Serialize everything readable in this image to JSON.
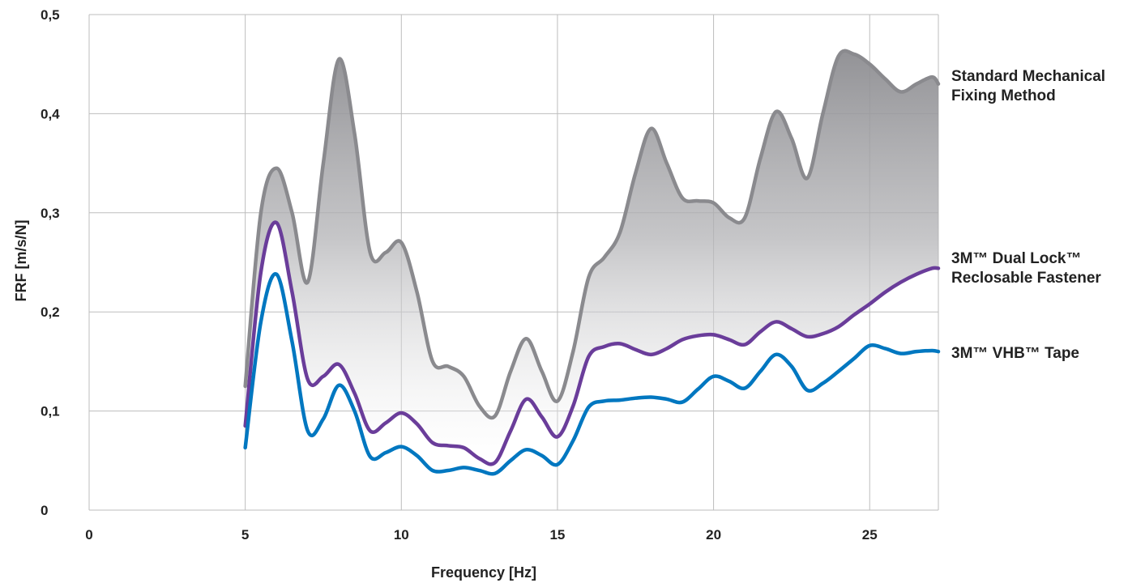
{
  "chart_data": {
    "type": "line",
    "xlabel": "Frequency [Hz]",
    "ylabel": "FRF [m/s/N]",
    "xlim": [
      0,
      27.2
    ],
    "ylim": [
      0,
      0.5
    ],
    "x_ticks": [
      0,
      5,
      10,
      15,
      20,
      25
    ],
    "x_tick_labels": [
      "0",
      "5",
      "10",
      "15",
      "20",
      "25"
    ],
    "y_ticks": [
      0,
      0.1,
      0.2,
      0.3,
      0.4,
      0.5
    ],
    "y_tick_labels": [
      "0",
      "0,1",
      "0,2",
      "0,3",
      "0,4",
      "0,5"
    ],
    "grid": true,
    "legend_placement": "right, inline at line ends",
    "fill_between": [
      "Standard Mechanical Fixing Method",
      "3M™ Dual Lock™ Reclosable Fastener"
    ],
    "series": [
      {
        "name": "Standard Mechanical Fixing Method",
        "label_lines": [
          "Standard Mechanical",
          "Fixing Method"
        ],
        "color": "#8a8a8e",
        "x": [
          5,
          5.5,
          6,
          6.5,
          7,
          7.5,
          8,
          8.5,
          9,
          9.5,
          10,
          10.5,
          11,
          11.5,
          12,
          12.5,
          13,
          13.5,
          14,
          14.5,
          15,
          15.5,
          16,
          16.5,
          17,
          17.5,
          18,
          18.5,
          19,
          19.5,
          20,
          20.5,
          21,
          21.5,
          22,
          22.5,
          23,
          23.5,
          24,
          24.5,
          25,
          25.5,
          26,
          26.5,
          27,
          27.2
        ],
        "y": [
          0.125,
          0.3,
          0.345,
          0.3,
          0.23,
          0.35,
          0.455,
          0.38,
          0.26,
          0.26,
          0.27,
          0.22,
          0.15,
          0.145,
          0.135,
          0.105,
          0.095,
          0.14,
          0.173,
          0.14,
          0.11,
          0.16,
          0.235,
          0.255,
          0.28,
          0.34,
          0.385,
          0.35,
          0.315,
          0.312,
          0.31,
          0.295,
          0.295,
          0.355,
          0.402,
          0.375,
          0.335,
          0.4,
          0.458,
          0.46,
          0.45,
          0.435,
          0.422,
          0.43,
          0.437,
          0.43
        ]
      },
      {
        "name": "3M™ Dual Lock™ Reclosable Fastener",
        "label_lines": [
          "3M™ Dual Lock™",
          "Reclosable Fastener"
        ],
        "color": "#6a3d9a",
        "x": [
          5,
          5.5,
          6,
          6.5,
          7,
          7.5,
          8,
          8.5,
          9,
          9.5,
          10,
          10.5,
          11,
          11.5,
          12,
          12.5,
          13,
          13.5,
          14,
          14.5,
          15,
          15.5,
          16,
          16.5,
          17,
          17.5,
          18,
          18.5,
          19,
          19.5,
          20,
          20.5,
          21,
          21.5,
          22,
          22.5,
          23,
          23.5,
          24,
          24.5,
          25,
          25.5,
          26,
          26.5,
          27,
          27.2
        ],
        "y": [
          0.085,
          0.24,
          0.29,
          0.22,
          0.132,
          0.135,
          0.147,
          0.118,
          0.08,
          0.088,
          0.098,
          0.087,
          0.068,
          0.065,
          0.063,
          0.052,
          0.048,
          0.08,
          0.112,
          0.094,
          0.074,
          0.105,
          0.155,
          0.165,
          0.168,
          0.162,
          0.157,
          0.163,
          0.172,
          0.176,
          0.177,
          0.172,
          0.167,
          0.18,
          0.19,
          0.183,
          0.175,
          0.178,
          0.185,
          0.197,
          0.208,
          0.22,
          0.23,
          0.238,
          0.244,
          0.244
        ]
      },
      {
        "name": "3M™ VHB™ Tape",
        "label_lines": [
          "3M™ VHB™ Tape"
        ],
        "color": "#0077c0",
        "x": [
          5,
          5.5,
          6,
          6.5,
          7,
          7.5,
          8,
          8.5,
          9,
          9.5,
          10,
          10.5,
          11,
          11.5,
          12,
          12.5,
          13,
          13.5,
          14,
          14.5,
          15,
          15.5,
          16,
          16.5,
          17,
          17.5,
          18,
          18.5,
          19,
          19.5,
          20,
          20.5,
          21,
          21.5,
          22,
          22.5,
          23,
          23.5,
          24,
          24.5,
          25,
          25.5,
          26,
          26.5,
          27,
          27.2
        ],
        "y": [
          0.063,
          0.19,
          0.238,
          0.17,
          0.08,
          0.092,
          0.126,
          0.1,
          0.054,
          0.058,
          0.064,
          0.055,
          0.04,
          0.04,
          0.043,
          0.04,
          0.037,
          0.05,
          0.061,
          0.055,
          0.046,
          0.07,
          0.104,
          0.11,
          0.111,
          0.113,
          0.114,
          0.112,
          0.109,
          0.122,
          0.135,
          0.13,
          0.123,
          0.14,
          0.157,
          0.145,
          0.121,
          0.128,
          0.14,
          0.153,
          0.166,
          0.163,
          0.158,
          0.16,
          0.161,
          0.16
        ]
      }
    ]
  }
}
